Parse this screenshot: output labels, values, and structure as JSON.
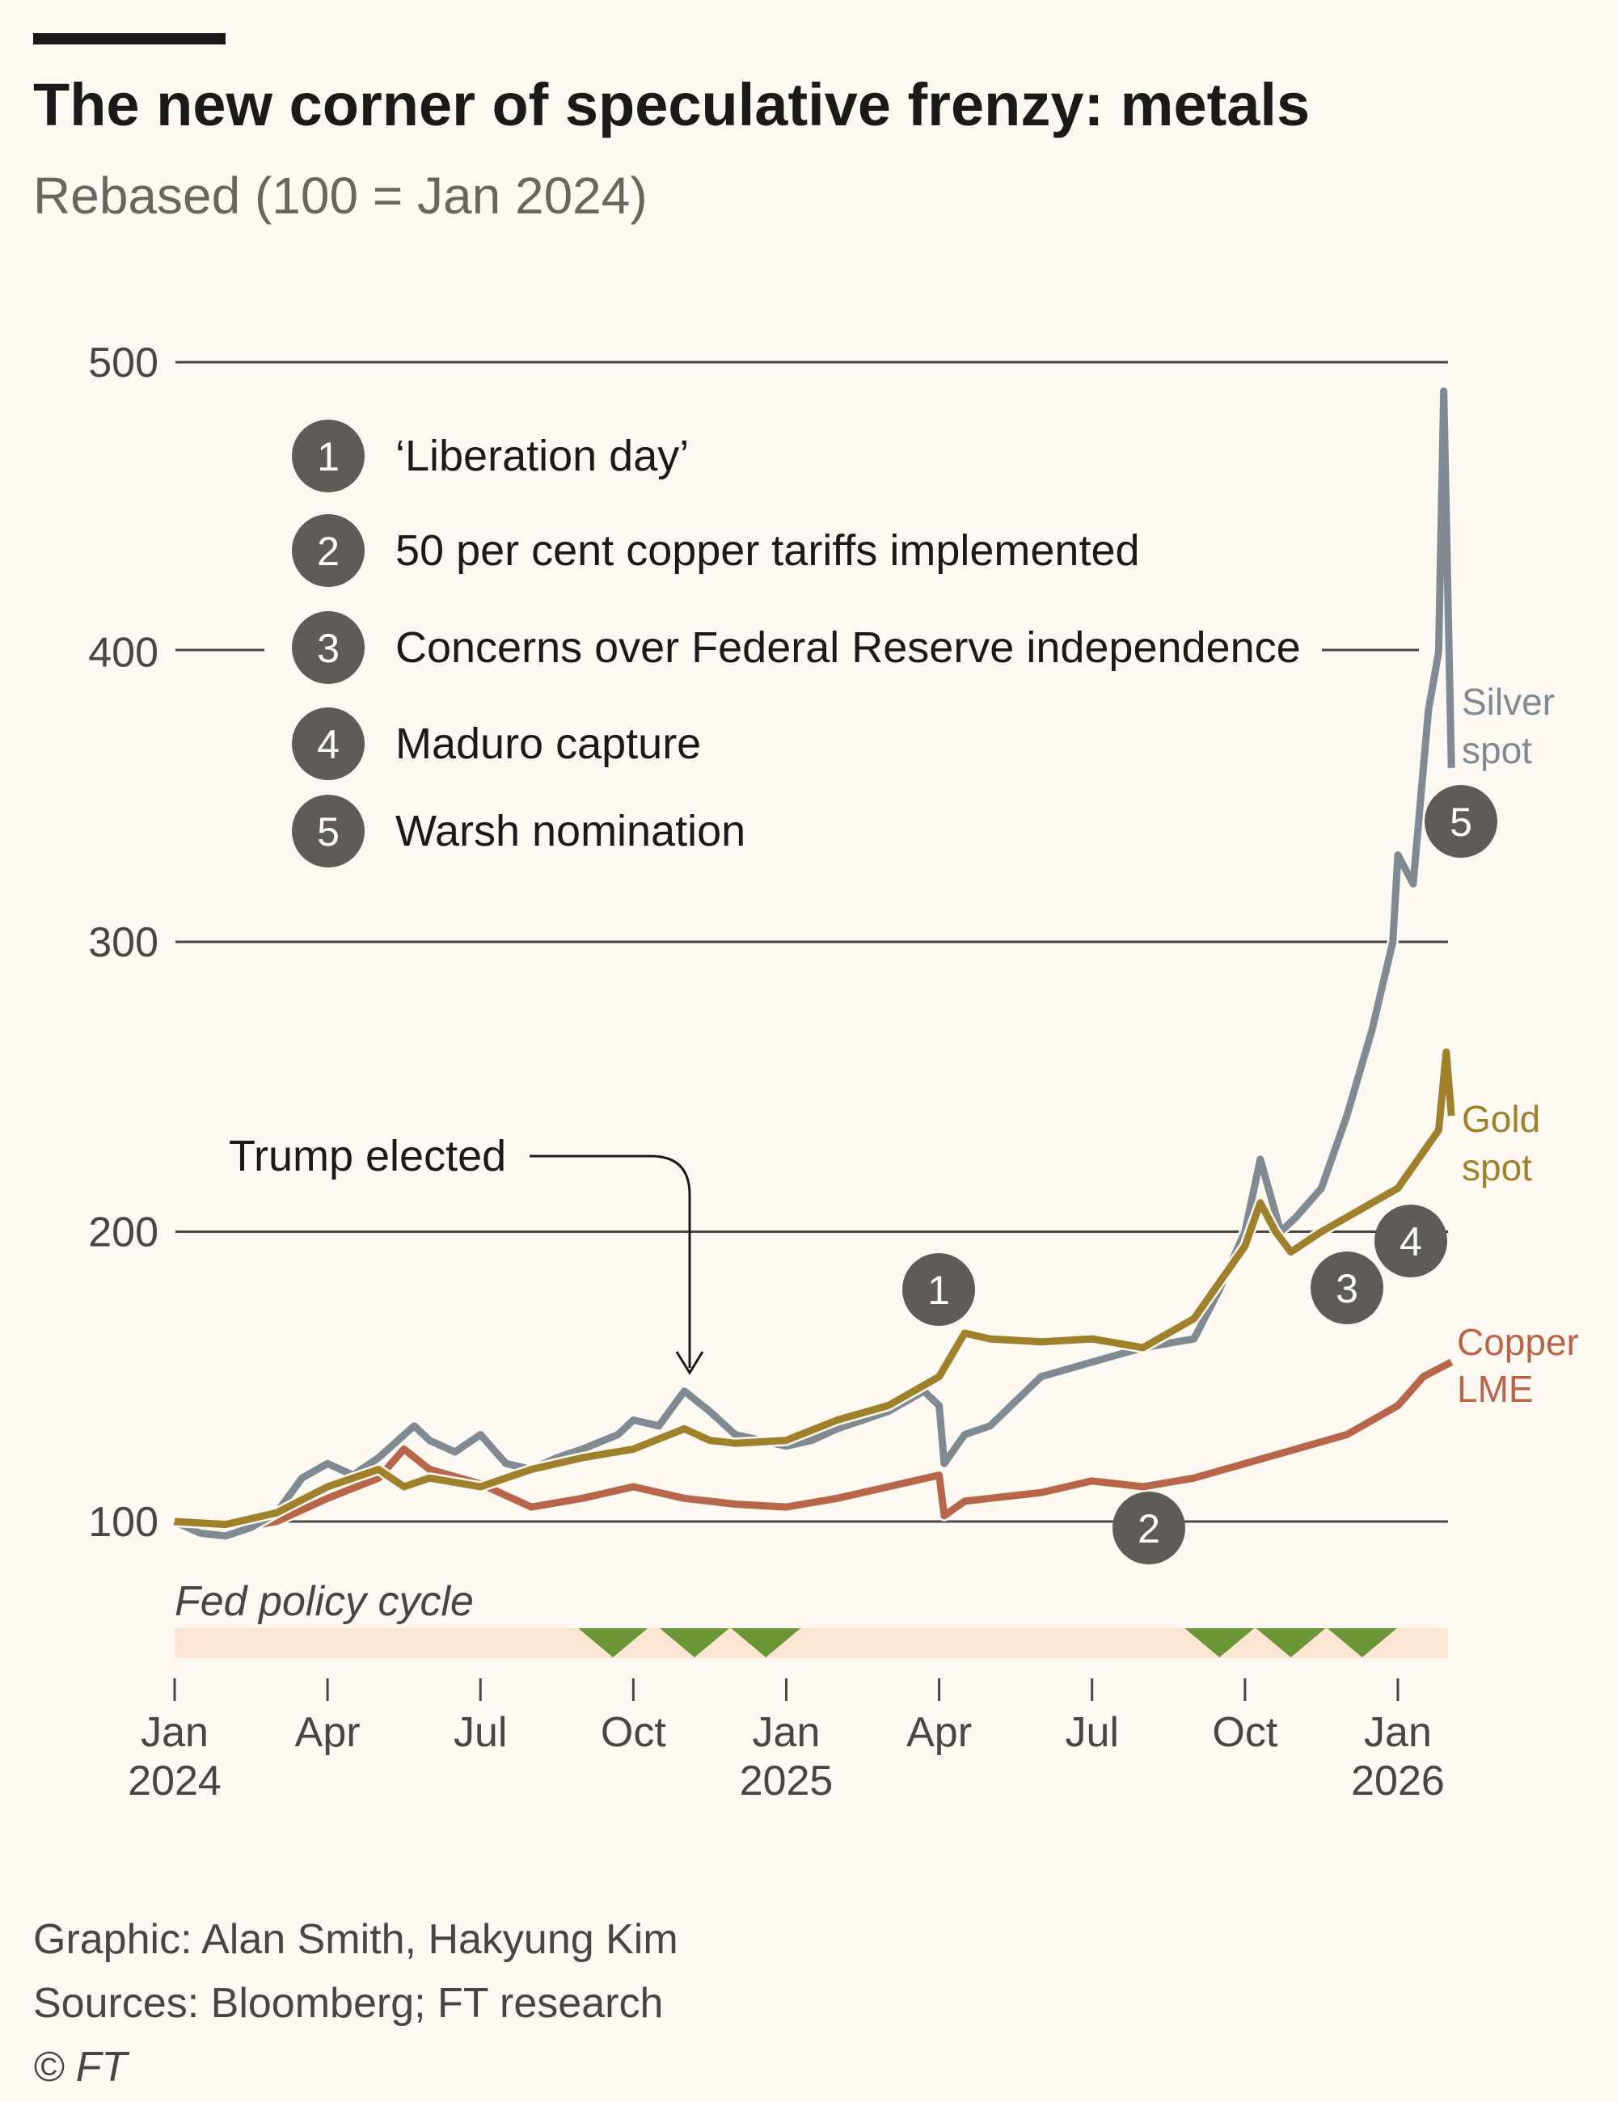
{
  "title": "The new corner of speculative frenzy: metals",
  "subtitle": "Rebased (100 = Jan 2024)",
  "colors": {
    "silver": "#7f8a93",
    "gold": "#a0812b",
    "copper": "#b8664a",
    "marker": "#5f5b57",
    "fed_band": "#fde5d3",
    "fed_cut": "#6a9636",
    "background": "#fdf8f2"
  },
  "chart_data": {
    "type": "line",
    "title": "The new corner of speculative frenzy: metals",
    "subtitle": "Rebased (100 = Jan 2024)",
    "ylabel": "",
    "ylim": [
      100,
      500
    ],
    "yticks": [
      100,
      200,
      300,
      400,
      500
    ],
    "ytick_labels": [
      "100",
      "200",
      "300",
      "400",
      "500"
    ],
    "x_unit": "months since Jan 2024",
    "xlim": [
      0,
      25
    ],
    "xticks": [
      {
        "month": 0,
        "label": "Jan",
        "year": "2024"
      },
      {
        "month": 3,
        "label": "Apr",
        "year": ""
      },
      {
        "month": 6,
        "label": "Jul",
        "year": ""
      },
      {
        "month": 9,
        "label": "Oct",
        "year": ""
      },
      {
        "month": 12,
        "label": "Jan",
        "year": "2025"
      },
      {
        "month": 15,
        "label": "Apr",
        "year": ""
      },
      {
        "month": 18,
        "label": "Jul",
        "year": ""
      },
      {
        "month": 21,
        "label": "Oct",
        "year": ""
      },
      {
        "month": 24,
        "label": "Jan",
        "year": "2026"
      }
    ],
    "grid": true,
    "series": [
      {
        "name": "Silver spot",
        "label_lines": [
          "Silver",
          "spot"
        ],
        "color": "#7f8a93",
        "x": [
          0,
          0.5,
          1,
          1.5,
          2,
          2.5,
          3,
          3.5,
          4,
          4.7,
          5,
          5.5,
          6,
          6.5,
          7,
          7.5,
          8,
          8.7,
          9,
          9.5,
          10,
          10.5,
          11,
          11.5,
          12,
          12.5,
          13,
          14,
          14.7,
          15,
          15.1,
          15.5,
          16,
          17,
          18,
          19,
          20,
          20.5,
          21,
          21.3,
          21.7,
          22,
          22.5,
          23,
          23.5,
          23.9,
          24,
          24.3,
          24.6,
          24.8,
          24.9,
          25.05
        ],
        "values": [
          100,
          96,
          95,
          98,
          103,
          115,
          120,
          116,
          122,
          133,
          128,
          124,
          130,
          120,
          118,
          122,
          125,
          130,
          135,
          133,
          145,
          138,
          130,
          128,
          126,
          128,
          132,
          138,
          145,
          140,
          120,
          130,
          133,
          150,
          155,
          160,
          163,
          180,
          200,
          225,
          200,
          205,
          215,
          240,
          270,
          300,
          330,
          320,
          380,
          400,
          490,
          360
        ]
      },
      {
        "name": "Gold spot",
        "label_lines": [
          "Gold",
          "spot"
        ],
        "color": "#a0812b",
        "x": [
          0,
          1,
          2,
          3,
          4,
          4.5,
          5,
          6,
          7,
          8,
          9,
          10,
          10.5,
          11,
          12,
          13,
          14,
          15,
          15.5,
          16,
          17,
          18,
          19,
          20,
          21,
          21.3,
          21.6,
          21.9,
          22.5,
          23,
          23.5,
          24,
          24.4,
          24.8,
          24.95,
          25.05
        ],
        "values": [
          100,
          99,
          103,
          112,
          118,
          112,
          115,
          112,
          118,
          122,
          125,
          132,
          128,
          127,
          128,
          135,
          140,
          150,
          165,
          163,
          162,
          163,
          160,
          170,
          195,
          210,
          200,
          193,
          200,
          205,
          210,
          215,
          225,
          235,
          262,
          240
        ]
      },
      {
        "name": "Copper LME",
        "label_lines": [
          "Copper",
          "LME"
        ],
        "color": "#b8664a",
        "x": [
          0,
          1,
          2,
          3,
          4,
          4.5,
          5,
          6,
          7,
          8,
          9,
          10,
          11,
          12,
          13,
          14,
          15,
          15.1,
          15.5,
          16,
          17,
          18,
          19,
          20,
          21,
          22,
          23,
          24,
          24.5,
          25.05
        ],
        "values": [
          100,
          97,
          100,
          108,
          115,
          125,
          118,
          113,
          105,
          108,
          112,
          108,
          106,
          105,
          108,
          112,
          116,
          102,
          107,
          108,
          110,
          114,
          112,
          115,
          120,
          125,
          130,
          140,
          150,
          155
        ]
      }
    ],
    "annotations": [
      {
        "text": "Trump elected",
        "month": 10.2
      },
      {
        "number": "1",
        "text": "‘Liberation day’"
      },
      {
        "number": "2",
        "text": "50 per cent copper tariffs implemented"
      },
      {
        "number": "3",
        "text": "Concerns over Federal Reserve independence"
      },
      {
        "number": "4",
        "text": "Maduro capture"
      },
      {
        "number": "5",
        "text": "Warsh nomination"
      }
    ],
    "fed_policy": {
      "label": "Fed policy cycle",
      "cuts_months": [
        8.6,
        10.2,
        11.6,
        20.5,
        21.9,
        23.3
      ]
    }
  },
  "footer": {
    "graphic": "Graphic: Alan Smith, Hakyung Kim",
    "sources": "Sources: Bloomberg; FT research",
    "copyright": "© FT"
  }
}
